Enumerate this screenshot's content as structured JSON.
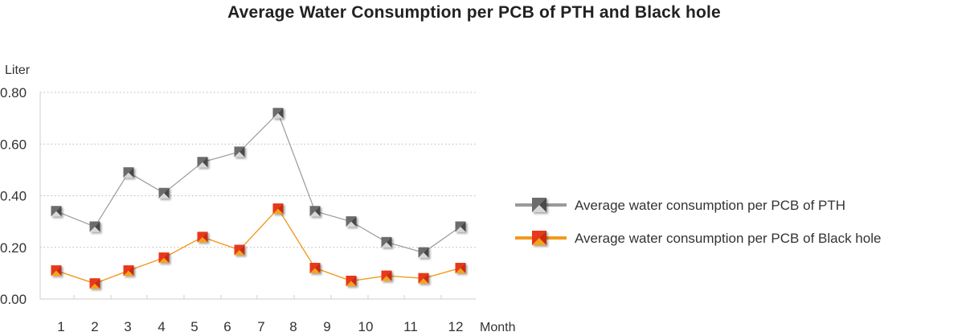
{
  "chart_data": {
    "type": "line",
    "title": "Average Water Consumption per PCB of PTH and Black hole",
    "xlabel": "Month",
    "ylabel": "Liter",
    "categories": [
      "1",
      "2",
      "3",
      "4",
      "5",
      "6",
      "7",
      "8",
      "9",
      "10",
      "11",
      "12"
    ],
    "yticks": [
      "0.00",
      "0.20",
      "0.40",
      "0.60",
      "0.80"
    ],
    "ylim": [
      0,
      0.8
    ],
    "grid": true,
    "legend_position": "right",
    "series": [
      {
        "name": "Average water consumption per PCB of PTH",
        "color": "#9a9a9a",
        "marker": "gray-triangle-square",
        "values": [
          0.34,
          0.28,
          0.49,
          0.41,
          0.53,
          0.57,
          0.72,
          0.34,
          0.3,
          0.22,
          0.18,
          0.28
        ]
      },
      {
        "name": "Average water consumption per PCB of Black hole",
        "color": "#f29a1e",
        "marker": "orange-red-square",
        "values": [
          0.11,
          0.06,
          0.11,
          0.16,
          0.24,
          0.19,
          0.35,
          0.12,
          0.07,
          0.09,
          0.08,
          0.12
        ]
      }
    ]
  }
}
